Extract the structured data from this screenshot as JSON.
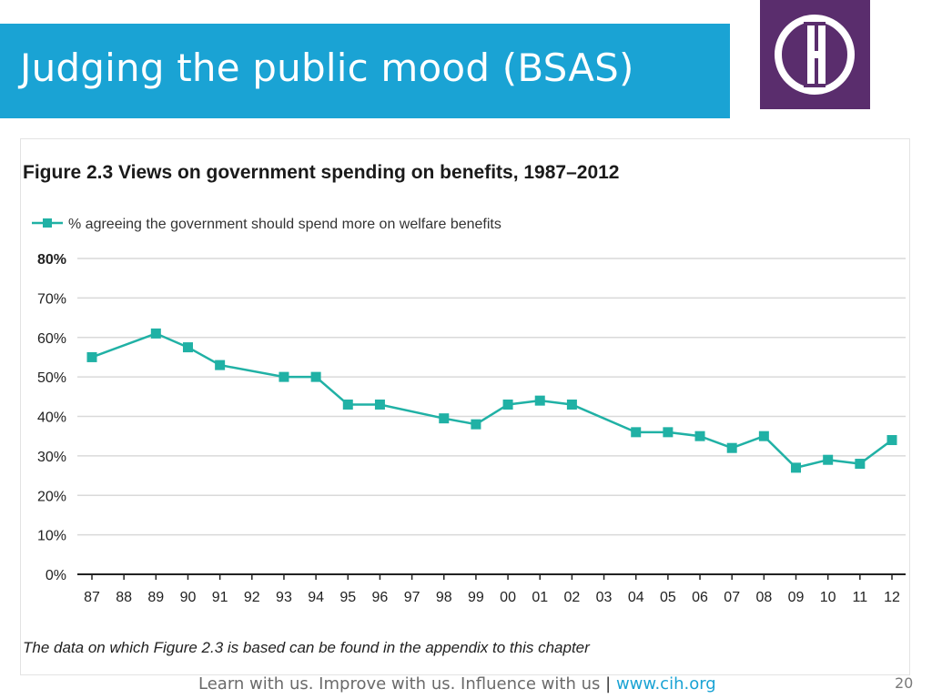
{
  "slide": {
    "title": "Judging the public mood (BSAS)",
    "footer_text": "Learn with us. Improve with us. Influence with us",
    "footer_separator": "|",
    "footer_link": "www.cih.org",
    "page_number": "20"
  },
  "logo": {
    "name": "cih-logo",
    "bg_color": "#5a2d6d"
  },
  "colors": {
    "title_bar": "#1aa3d4",
    "series": "#20b1a5"
  },
  "chart_data": {
    "type": "line",
    "title": "Figure 2.3 Views on government spending on benefits, 1987–2012",
    "x": [
      "87",
      "89",
      "90",
      "91",
      "93",
      "94",
      "95",
      "96",
      "98",
      "99",
      "00",
      "01",
      "02",
      "04",
      "05",
      "06",
      "07",
      "08",
      "09",
      "10",
      "11",
      "12"
    ],
    "x_ticks": [
      "87",
      "88",
      "89",
      "90",
      "91",
      "92",
      "93",
      "94",
      "95",
      "96",
      "97",
      "98",
      "99",
      "00",
      "01",
      "02",
      "03",
      "04",
      "05",
      "06",
      "07",
      "08",
      "09",
      "10",
      "11",
      "12"
    ],
    "series": [
      {
        "name": "% agreeing the government should spend more on welfare benefits",
        "values": [
          55,
          61,
          57.5,
          53,
          50,
          50,
          43,
          43,
          39.5,
          38,
          43,
          44,
          43,
          36,
          36,
          35,
          32,
          35,
          27,
          29,
          28,
          34
        ]
      }
    ],
    "y_ticks": [
      "0%",
      "10%",
      "20%",
      "30%",
      "40%",
      "50%",
      "60%",
      "70%",
      "80%"
    ],
    "ylim": [
      0,
      80
    ],
    "grid": true,
    "legend": "top-left",
    "note": "The data on which Figure 2.3 is based can be found in the appendix to this chapter"
  }
}
